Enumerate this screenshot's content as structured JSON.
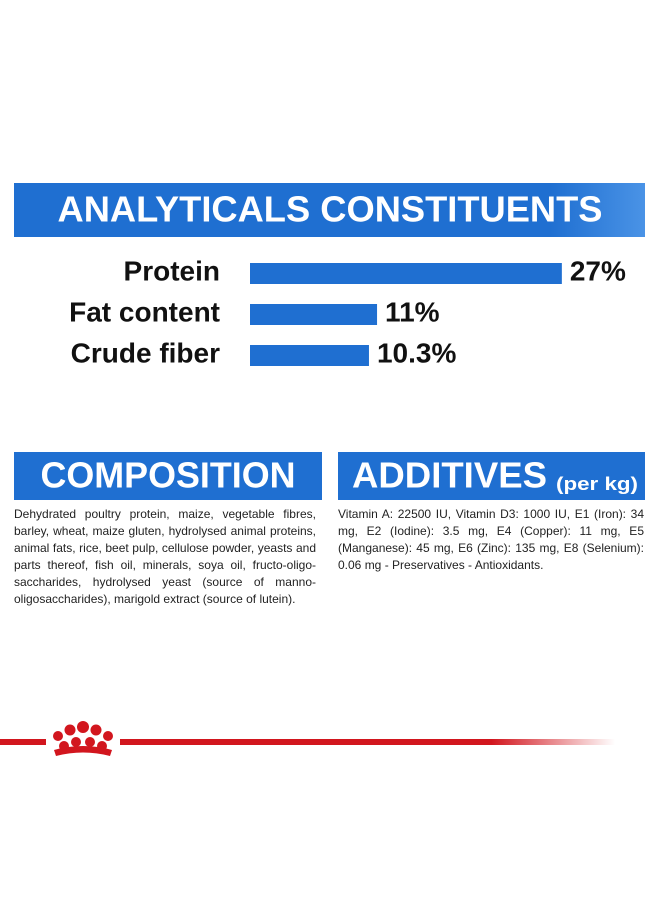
{
  "chart_data": {
    "type": "bar",
    "title": "ANALYTICALS CONSTITUENTS",
    "categories": [
      "Protein",
      "Fat content",
      "Crude fiber"
    ],
    "values": [
      27,
      11,
      10.3
    ],
    "value_labels": [
      "27%",
      "11%",
      "10.3%"
    ],
    "color": "#1f6fd1"
  },
  "composition": {
    "title": "COMPOSITION",
    "text": "Dehydrated poultry protein, maize, vegetable fibres, barley, wheat, maize gluten, hydrolysed animal proteins, animal fats, rice, beet pulp, cellulose powder, yeasts and parts thereof, fish oil, minerals, soya oil, fructo-oligo-saccharides, hydrolysed yeast (source of manno-oligosaccharides), marigold extract (source of lutein)."
  },
  "additives": {
    "title": "ADDITIVES",
    "subtitle": "(per kg)",
    "text": "Vitamin A: 22500 IU, Vitamin D3: 1000 IU, E1 (Iron): 34 mg, E2 (Iodine): 3.5 mg, E4 (Copper): 11 mg, E5 (Manganese): 45 mg, E6 (Zinc): 135 mg, E8 (Selenium): 0.06 mg - Preservatives - Antioxidants."
  }
}
